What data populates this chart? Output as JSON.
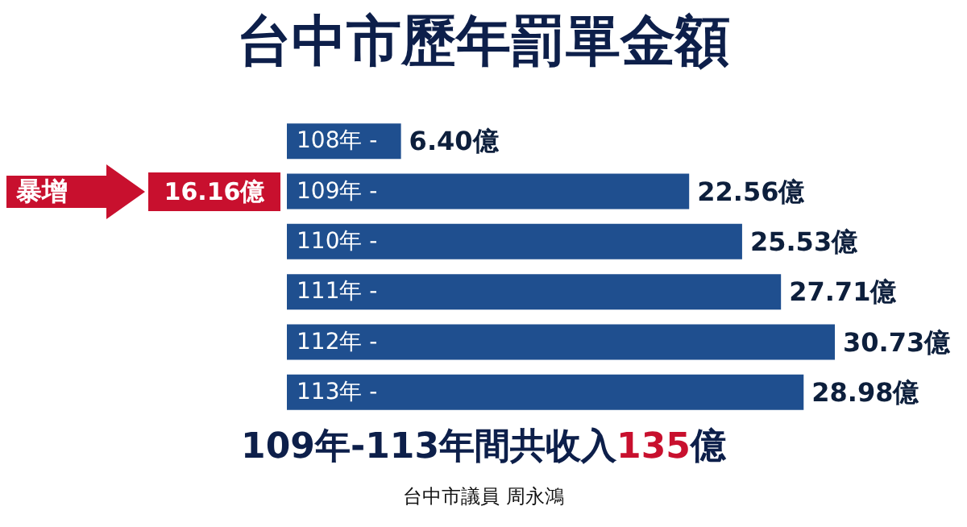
{
  "chart_data": {
    "type": "bar",
    "orientation": "horizontal",
    "title": "台中市歷年罰單金額",
    "categories": [
      "108年 -",
      "109年 -",
      "110年 -",
      "111年 -",
      "112年 -",
      "113年 -"
    ],
    "values": [
      6.4,
      22.56,
      25.53,
      27.71,
      30.73,
      28.98
    ],
    "value_labels": [
      "6.40億",
      "22.56億",
      "25.53億",
      "27.71億",
      "30.73億",
      "28.98億"
    ],
    "color": "#1f4f8f",
    "annotations": [
      "暴增",
      "16.16億",
      "109年-113年間共收入135億",
      "台中市議員 周永鴻"
    ]
  }
}
